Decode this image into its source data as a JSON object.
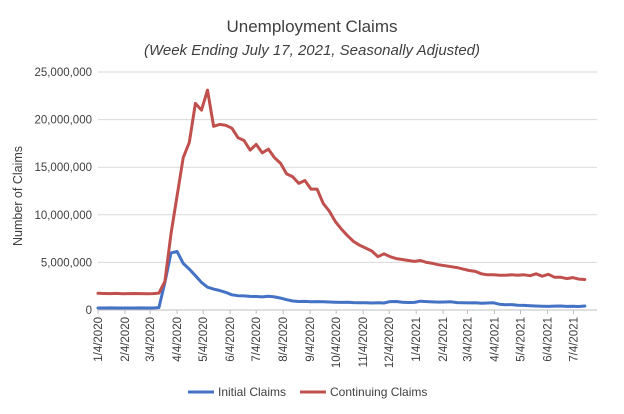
{
  "chart_data": {
    "type": "line",
    "title": "Unemployment Claims",
    "subtitle": "(Week Ending July 17, 2021, Seasonally Adjusted)",
    "xlabel": "",
    "ylabel": "Number of Claims",
    "ylim": [
      0,
      25000000
    ],
    "yticks": [
      0,
      5000000,
      10000000,
      15000000,
      20000000,
      25000000
    ],
    "ytick_labels": [
      "0",
      "5,000,000",
      "10,000,000",
      "15,000,000",
      "20,000,000",
      "25,000,000"
    ],
    "xticks": [
      "2020-01-04",
      "2020-02-04",
      "2020-03-04",
      "2020-04-04",
      "2020-05-04",
      "2020-06-04",
      "2020-07-04",
      "2020-08-04",
      "2020-09-04",
      "2020-10-04",
      "2020-11-04",
      "2020-12-04",
      "2021-01-04",
      "2021-02-04",
      "2021-03-04",
      "2021-04-04",
      "2021-05-04",
      "2021-06-04",
      "2021-07-04"
    ],
    "xtick_labels": [
      "1/4/2020",
      "2/4/2020",
      "3/4/2020",
      "4/4/2020",
      "5/4/2020",
      "6/4/2020",
      "7/4/2020",
      "8/4/2020",
      "9/4/2020",
      "10/4/2020",
      "11/4/2020",
      "12/4/2020",
      "1/4/2021",
      "2/4/2021",
      "3/4/2021",
      "4/4/2021",
      "5/4/2021",
      "6/4/2021",
      "7/4/2021"
    ],
    "xlim": [
      "2020-01-04",
      "2021-07-31"
    ],
    "grid": true,
    "legend": "bottom",
    "series": [
      {
        "name": "Initial Claims",
        "color": "#4472c4",
        "points": [
          [
            "2020-01-04",
            210000
          ],
          [
            "2020-01-11",
            215000
          ],
          [
            "2020-01-18",
            220000
          ],
          [
            "2020-01-25",
            215000
          ],
          [
            "2020-02-01",
            205000
          ],
          [
            "2020-02-08",
            210000
          ],
          [
            "2020-02-15",
            215000
          ],
          [
            "2020-02-22",
            220000
          ],
          [
            "2020-02-29",
            215000
          ],
          [
            "2020-03-07",
            210000
          ],
          [
            "2020-03-14",
            250000
          ],
          [
            "2020-03-21",
            2900000
          ],
          [
            "2020-03-28",
            6000000
          ],
          [
            "2020-04-04",
            6150000
          ],
          [
            "2020-04-11",
            4900000
          ],
          [
            "2020-04-18",
            4300000
          ],
          [
            "2020-04-25",
            3600000
          ],
          [
            "2020-05-02",
            2900000
          ],
          [
            "2020-05-09",
            2400000
          ],
          [
            "2020-05-16",
            2200000
          ],
          [
            "2020-05-23",
            2050000
          ],
          [
            "2020-05-30",
            1850000
          ],
          [
            "2020-06-06",
            1600000
          ],
          [
            "2020-06-13",
            1500000
          ],
          [
            "2020-06-20",
            1480000
          ],
          [
            "2020-06-27",
            1430000
          ],
          [
            "2020-07-04",
            1420000
          ],
          [
            "2020-07-11",
            1380000
          ],
          [
            "2020-07-18",
            1450000
          ],
          [
            "2020-07-25",
            1380000
          ],
          [
            "2020-08-01",
            1250000
          ],
          [
            "2020-08-08",
            1080000
          ],
          [
            "2020-08-15",
            950000
          ],
          [
            "2020-08-22",
            890000
          ],
          [
            "2020-08-29",
            900000
          ],
          [
            "2020-09-05",
            860000
          ],
          [
            "2020-09-12",
            880000
          ],
          [
            "2020-09-19",
            860000
          ],
          [
            "2020-09-26",
            840000
          ],
          [
            "2020-10-03",
            820000
          ],
          [
            "2020-10-10",
            800000
          ],
          [
            "2020-10-17",
            820000
          ],
          [
            "2020-10-24",
            780000
          ],
          [
            "2020-10-31",
            770000
          ],
          [
            "2020-11-07",
            760000
          ],
          [
            "2020-11-14",
            740000
          ],
          [
            "2020-11-21",
            760000
          ],
          [
            "2020-11-28",
            740000
          ],
          [
            "2020-12-05",
            880000
          ],
          [
            "2020-12-12",
            890000
          ],
          [
            "2020-12-19",
            820000
          ],
          [
            "2020-12-26",
            790000
          ],
          [
            "2021-01-02",
            800000
          ],
          [
            "2021-01-09",
            920000
          ],
          [
            "2021-01-16",
            880000
          ],
          [
            "2021-01-23",
            850000
          ],
          [
            "2021-01-30",
            830000
          ],
          [
            "2021-02-06",
            840000
          ],
          [
            "2021-02-13",
            860000
          ],
          [
            "2021-02-20",
            780000
          ],
          [
            "2021-02-27",
            760000
          ],
          [
            "2021-03-06",
            750000
          ],
          [
            "2021-03-13",
            760000
          ],
          [
            "2021-03-20",
            700000
          ],
          [
            "2021-03-27",
            740000
          ],
          [
            "2021-04-03",
            760000
          ],
          [
            "2021-04-10",
            600000
          ],
          [
            "2021-04-17",
            560000
          ],
          [
            "2021-04-24",
            570000
          ],
          [
            "2021-05-01",
            500000
          ],
          [
            "2021-05-08",
            480000
          ],
          [
            "2021-05-15",
            450000
          ],
          [
            "2021-05-22",
            420000
          ],
          [
            "2021-05-29",
            400000
          ],
          [
            "2021-06-05",
            380000
          ],
          [
            "2021-06-12",
            410000
          ],
          [
            "2021-06-19",
            420000
          ],
          [
            "2021-06-26",
            380000
          ],
          [
            "2021-07-03",
            390000
          ],
          [
            "2021-07-10",
            370000
          ],
          [
            "2021-07-17",
            420000
          ]
        ]
      },
      {
        "name": "Continuing Claims",
        "color": "#c0504d",
        "points": [
          [
            "2020-01-04",
            1750000
          ],
          [
            "2020-01-11",
            1730000
          ],
          [
            "2020-01-18",
            1720000
          ],
          [
            "2020-01-25",
            1740000
          ],
          [
            "2020-02-01",
            1700000
          ],
          [
            "2020-02-08",
            1720000
          ],
          [
            "2020-02-15",
            1730000
          ],
          [
            "2020-02-22",
            1720000
          ],
          [
            "2020-02-29",
            1700000
          ],
          [
            "2020-03-07",
            1720000
          ],
          [
            "2020-03-14",
            1780000
          ],
          [
            "2020-03-21",
            3000000
          ],
          [
            "2020-03-28",
            8000000
          ],
          [
            "2020-04-04",
            12000000
          ],
          [
            "2020-04-11",
            16000000
          ],
          [
            "2020-04-18",
            17600000
          ],
          [
            "2020-04-25",
            21700000
          ],
          [
            "2020-05-02",
            21000000
          ],
          [
            "2020-05-09",
            23100000
          ],
          [
            "2020-05-16",
            19300000
          ],
          [
            "2020-05-23",
            19500000
          ],
          [
            "2020-05-30",
            19400000
          ],
          [
            "2020-06-06",
            19100000
          ],
          [
            "2020-06-13",
            18100000
          ],
          [
            "2020-06-20",
            17800000
          ],
          [
            "2020-06-27",
            16800000
          ],
          [
            "2020-07-04",
            17400000
          ],
          [
            "2020-07-11",
            16500000
          ],
          [
            "2020-07-18",
            16900000
          ],
          [
            "2020-07-25",
            16000000
          ],
          [
            "2020-08-01",
            15400000
          ],
          [
            "2020-08-08",
            14300000
          ],
          [
            "2020-08-15",
            14000000
          ],
          [
            "2020-08-22",
            13300000
          ],
          [
            "2020-08-29",
            13600000
          ],
          [
            "2020-09-05",
            12700000
          ],
          [
            "2020-09-12",
            12700000
          ],
          [
            "2020-09-19",
            11200000
          ],
          [
            "2020-09-26",
            10400000
          ],
          [
            "2020-10-03",
            9300000
          ],
          [
            "2020-10-10",
            8500000
          ],
          [
            "2020-10-17",
            7800000
          ],
          [
            "2020-10-24",
            7200000
          ],
          [
            "2020-10-31",
            6800000
          ],
          [
            "2020-11-07",
            6500000
          ],
          [
            "2020-11-14",
            6200000
          ],
          [
            "2020-11-21",
            5600000
          ],
          [
            "2020-11-28",
            5900000
          ],
          [
            "2020-12-05",
            5600000
          ],
          [
            "2020-12-12",
            5400000
          ],
          [
            "2020-12-19",
            5300000
          ],
          [
            "2020-12-26",
            5200000
          ],
          [
            "2021-01-02",
            5100000
          ],
          [
            "2021-01-09",
            5200000
          ],
          [
            "2021-01-16",
            5000000
          ],
          [
            "2021-01-23",
            4900000
          ],
          [
            "2021-01-30",
            4750000
          ],
          [
            "2021-02-06",
            4650000
          ],
          [
            "2021-02-13",
            4550000
          ],
          [
            "2021-02-20",
            4450000
          ],
          [
            "2021-02-27",
            4300000
          ],
          [
            "2021-03-06",
            4150000
          ],
          [
            "2021-03-13",
            4050000
          ],
          [
            "2021-03-20",
            3800000
          ],
          [
            "2021-03-27",
            3700000
          ],
          [
            "2021-04-03",
            3700000
          ],
          [
            "2021-04-10",
            3650000
          ],
          [
            "2021-04-17",
            3650000
          ],
          [
            "2021-04-24",
            3700000
          ],
          [
            "2021-05-01",
            3650000
          ],
          [
            "2021-05-08",
            3700000
          ],
          [
            "2021-05-15",
            3600000
          ],
          [
            "2021-05-22",
            3800000
          ],
          [
            "2021-05-29",
            3550000
          ],
          [
            "2021-06-05",
            3750000
          ],
          [
            "2021-06-12",
            3450000
          ],
          [
            "2021-06-19",
            3450000
          ],
          [
            "2021-06-26",
            3300000
          ],
          [
            "2021-07-03",
            3400000
          ],
          [
            "2021-07-10",
            3250000
          ],
          [
            "2021-07-17",
            3200000
          ]
        ]
      }
    ]
  }
}
